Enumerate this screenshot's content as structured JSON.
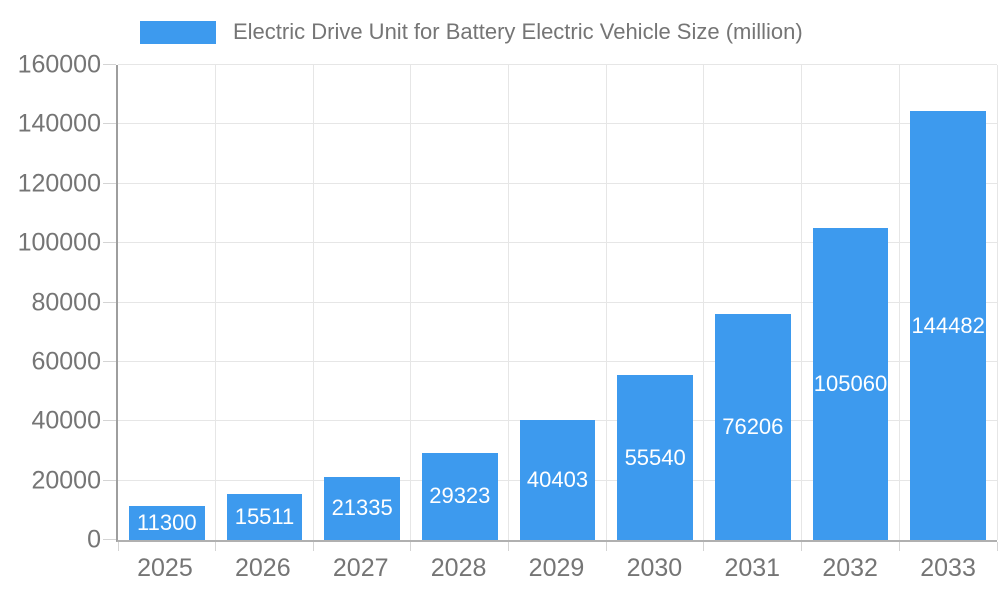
{
  "legend": {
    "label": "Electric Drive Unit for Battery Electric Vehicle Size (million)"
  },
  "colors": {
    "bar": "#3D9AEE",
    "value_label": "#FFFFFF",
    "text": "#757575",
    "axis_y": "#9E9E9E",
    "axis_x": "#B0B0B0",
    "grid": "#E6E6E6",
    "tick": "#D4D4D4",
    "background": "#FFFFFF"
  },
  "chart_data": {
    "type": "bar",
    "title": "Electric Drive Unit for Battery Electric Vehicle Size (million)",
    "categories": [
      "2025",
      "2026",
      "2027",
      "2028",
      "2029",
      "2030",
      "2031",
      "2032",
      "2033"
    ],
    "values": [
      11300,
      15511,
      21335,
      29323,
      40403,
      55540,
      76206,
      105060,
      144482
    ],
    "xlabel": "",
    "ylabel": "",
    "ylim": [
      0,
      160000
    ],
    "yticks": [
      0,
      20000,
      40000,
      60000,
      80000,
      100000,
      120000,
      140000,
      160000
    ],
    "grid": true,
    "legend_position": "top",
    "value_label_position": "inside-center"
  }
}
